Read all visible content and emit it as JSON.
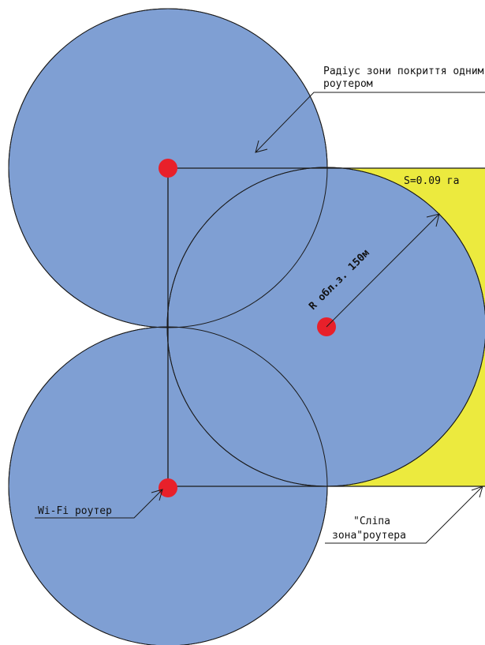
{
  "colors": {
    "coverage_fill": "#7f9fd3",
    "blind_zone_fill": "#ecea3e",
    "router_dot": "#e8202a",
    "line": "#1a1a1a",
    "background": "#ffffff"
  },
  "coverage_circles": [
    {
      "name": "coverage-circle-top-left"
    },
    {
      "name": "coverage-circle-bottom-left"
    },
    {
      "name": "coverage-circle-center"
    }
  ],
  "routers": [
    {
      "name": "router-dot-top-left"
    },
    {
      "name": "router-dot-bottom-left"
    },
    {
      "name": "router-dot-center"
    }
  ],
  "labels": {
    "coverage_radius_line1": "Радіус зони покриття одним",
    "coverage_radius_line2": "роутером",
    "radius_value": "R обл.з. 150м",
    "area": "S=0.09 га",
    "router": "Wi-Fi роутер",
    "blind_zone_line1": "\"Сліпа",
    "blind_zone_line2": "зона\"роутера"
  }
}
